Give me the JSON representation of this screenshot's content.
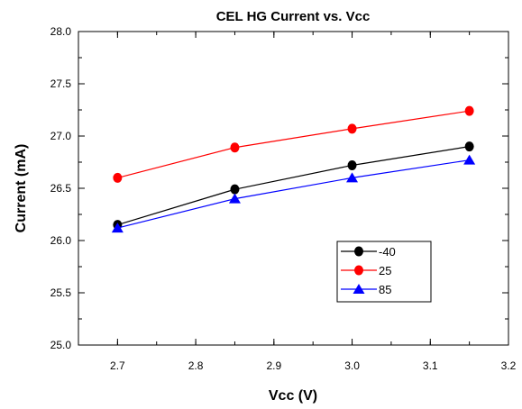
{
  "chart_data": {
    "type": "line",
    "title": "CEL HG Current vs. Vcc",
    "xlabel": "Vcc (V)",
    "ylabel": "Current (mA)",
    "xlim": [
      2.65,
      3.2
    ],
    "ylim": [
      25.0,
      28.0
    ],
    "xticks": [
      "2.7",
      "2.8",
      "2.9",
      "3.0",
      "3.1",
      "3.2"
    ],
    "yticks": [
      "25.0",
      "25.5",
      "26.0",
      "26.5",
      "27.0",
      "27.5",
      "28.0"
    ],
    "x": [
      2.7,
      2.85,
      3.0,
      3.15
    ],
    "grid": false,
    "legend_position": "lower-right",
    "series": [
      {
        "name": "-40",
        "color": "#000000",
        "marker": "circle",
        "values": [
          26.15,
          26.49,
          26.72,
          26.9
        ]
      },
      {
        "name": "25",
        "color": "#ff0000",
        "marker": "circle",
        "values": [
          26.6,
          26.89,
          27.07,
          27.24
        ]
      },
      {
        "name": "85",
        "color": "#0000ff",
        "marker": "triangle",
        "values": [
          26.12,
          26.4,
          26.6,
          26.77
        ]
      }
    ]
  }
}
